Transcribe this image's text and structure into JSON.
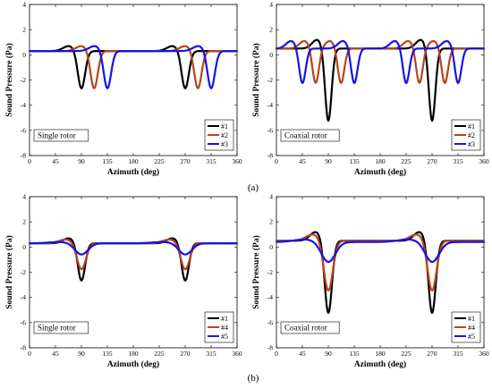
{
  "figure": {
    "panel_labels": [
      "(a)",
      "(b)"
    ]
  },
  "chart_data": [
    {
      "type": "line",
      "annotation": "Single rotor",
      "xlabel": "Azimuth (deg)",
      "ylabel": "Sound Pressure (Pa)",
      "xlim": [
        0,
        360
      ],
      "ylim": [
        -8,
        4
      ],
      "xticks": [
        0,
        45,
        90,
        135,
        180,
        225,
        270,
        315,
        360
      ],
      "yticks": [
        -8,
        -6,
        -4,
        -2,
        0,
        2,
        4
      ],
      "legend_position": "bottom-right",
      "series": [
        {
          "name": "#1",
          "color": "#000000",
          "baseline": 0.3,
          "bump": 0.4,
          "peaks": [
            90,
            270
          ],
          "dip": -2.7,
          "width": 9
        },
        {
          "name": "#2",
          "color": "#b8441e",
          "baseline": 0.3,
          "bump": 0.4,
          "peaks": [
            112,
            292
          ],
          "dip": -2.7,
          "width": 9
        },
        {
          "name": "#3",
          "color": "#1414e6",
          "baseline": 0.3,
          "bump": 0.4,
          "peaks": [
            135,
            315
          ],
          "dip": -2.7,
          "width": 9
        }
      ]
    },
    {
      "type": "line",
      "annotation": "Coaxial rotor",
      "xlabel": "Azimuth (deg)",
      "ylabel": "Sound Pressure (Pa)",
      "xlim": [
        0,
        360
      ],
      "ylim": [
        -8,
        4
      ],
      "xticks": [
        0,
        45,
        90,
        135,
        180,
        225,
        270,
        315,
        360
      ],
      "yticks": [
        -8,
        -6,
        -4,
        -2,
        0,
        2,
        4
      ],
      "legend_position": "bottom-right",
      "series": [
        {
          "name": "#1",
          "color": "#000000",
          "baseline": 0.5,
          "bump": 0.7,
          "peaks": [
            90,
            270
          ],
          "dip": -5.3,
          "width": 8
        },
        {
          "name": "#2",
          "color": "#b8441e",
          "baseline": 0.5,
          "bump": 0.6,
          "peaks": [
            68,
            112,
            248,
            292
          ],
          "dip": -2.3,
          "width": 8
        },
        {
          "name": "#3",
          "color": "#1414e6",
          "baseline": 0.5,
          "bump": 0.6,
          "peaks": [
            45,
            135,
            225,
            315
          ],
          "dip": -2.3,
          "width": 8
        }
      ]
    },
    {
      "type": "line",
      "annotation": "Single rotor",
      "xlabel": "Azimuth (deg)",
      "ylabel": "Sound Pressure (Pa)",
      "xlim": [
        0,
        360
      ],
      "ylim": [
        -8,
        4
      ],
      "xticks": [
        0,
        45,
        90,
        135,
        180,
        225,
        270,
        315,
        360
      ],
      "yticks": [
        -8,
        -6,
        -4,
        -2,
        0,
        2,
        4
      ],
      "legend_position": "bottom-right",
      "series": [
        {
          "name": "#1",
          "color": "#000000",
          "baseline": 0.3,
          "bump": 0.4,
          "peaks": [
            90,
            270
          ],
          "dip": -2.7,
          "width": 9
        },
        {
          "name": "#4",
          "color": "#b8441e",
          "baseline": 0.3,
          "bump": 0.3,
          "peaks": [
            90,
            270
          ],
          "dip": -1.8,
          "width": 11
        },
        {
          "name": "#5",
          "color": "#1414e6",
          "baseline": 0.3,
          "bump": 0.1,
          "peaks": [
            90,
            270
          ],
          "dip": -0.6,
          "width": 16
        }
      ]
    },
    {
      "type": "line",
      "annotation": "Coaxial rotor",
      "xlabel": "Azimuth (deg)",
      "ylabel": "Sound Pressure (Pa)",
      "xlim": [
        0,
        360
      ],
      "ylim": [
        -8,
        4
      ],
      "xticks": [
        0,
        45,
        90,
        135,
        180,
        225,
        270,
        315,
        360
      ],
      "yticks": [
        -8,
        -6,
        -4,
        -2,
        0,
        2,
        4
      ],
      "legend_position": "bottom-right",
      "series": [
        {
          "name": "#1",
          "color": "#000000",
          "baseline": 0.5,
          "bump": 0.7,
          "peaks": [
            90,
            270
          ],
          "dip": -5.3,
          "width": 9
        },
        {
          "name": "#4",
          "color": "#b8441e",
          "baseline": 0.5,
          "bump": 0.5,
          "peaks": [
            90,
            270
          ],
          "dip": -3.5,
          "width": 11
        },
        {
          "name": "#5",
          "color": "#1414e6",
          "baseline": 0.4,
          "bump": 0.2,
          "peaks": [
            90,
            270
          ],
          "dip": -1.2,
          "width": 17
        }
      ]
    }
  ]
}
